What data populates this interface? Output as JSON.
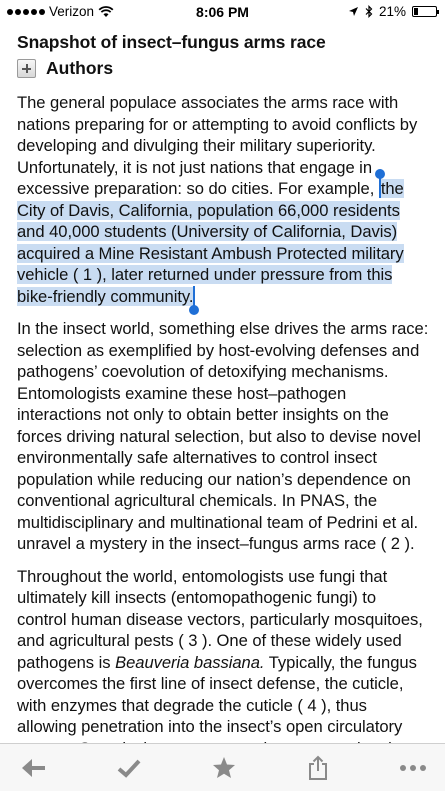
{
  "status_bar": {
    "carrier": "Verizon",
    "time": "8:06 PM",
    "battery_percent": "21%",
    "battery_level": 0.21,
    "icons": [
      "signal-dots-icon",
      "wifi-icon",
      "location-arrow-icon",
      "bluetooth-icon",
      "battery-icon"
    ]
  },
  "article": {
    "title": "Snapshot of insect–fungus arms race",
    "authors_label": "Authors",
    "p1_before": "The general populace associates the arms race with nations preparing for or attempting to avoid conflicts by developing and divulging their military superiority. Unfortunately, it is not just nations that engage in excessive preparation: so do cities. For example, ",
    "p1_selected": "the City of Davis, California, population 66,000 residents and 40,000 students (University of California, Davis) acquired a Mine Resistant Ambush Protected military vehicle ( 1 ), later returned under pressure from this bike-friendly community.",
    "p2": "In the insect world, something else drives the arms race: selection as exemplified by host-evolving defenses and pathogens’ coevolution of detoxifying mechanisms. Entomologists examine these host–pathogen interactions not only to obtain better insights on the forces driving natural selection, but also to devise novel environmentally safe alternatives to control insect population while reducing our nation’s dependence on conventional agricultural chemicals. In PNAS, the multidisciplinary and multinational team of Pedrini et al. unravel a mystery in the insect–fungus arms race ( 2 ).",
    "p3_before": "Throughout the world, entomologists use fungi that ultimately kill insects (entomopathogenic fungi) to control human disease vectors, particularly mosquitoes, and agricultural pests ( 3 ). One of these widely used pathogens is ",
    "p3_italic": "Beauveria bassiana.",
    "p3_after": " Typically, the fungus overcomes the first line of insect defense, the cuticle, with enzymes that degrade the cuticle ( 4 ), thus allowing penetration into the insect’s open circulatory system. Once its immune system is overcome in a loop, the insect dies while including the fungus"
  },
  "toolbar": {
    "buttons": [
      "back-arrow-icon",
      "checkmark-icon",
      "star-icon",
      "share-icon",
      "more-icon"
    ]
  },
  "colors": {
    "selection_highlight": "#c9dcf2",
    "selection_handle": "#1f6fd6",
    "toolbar_icon": "#8a8a8a",
    "toolbar_background": "#f7f7f7"
  }
}
